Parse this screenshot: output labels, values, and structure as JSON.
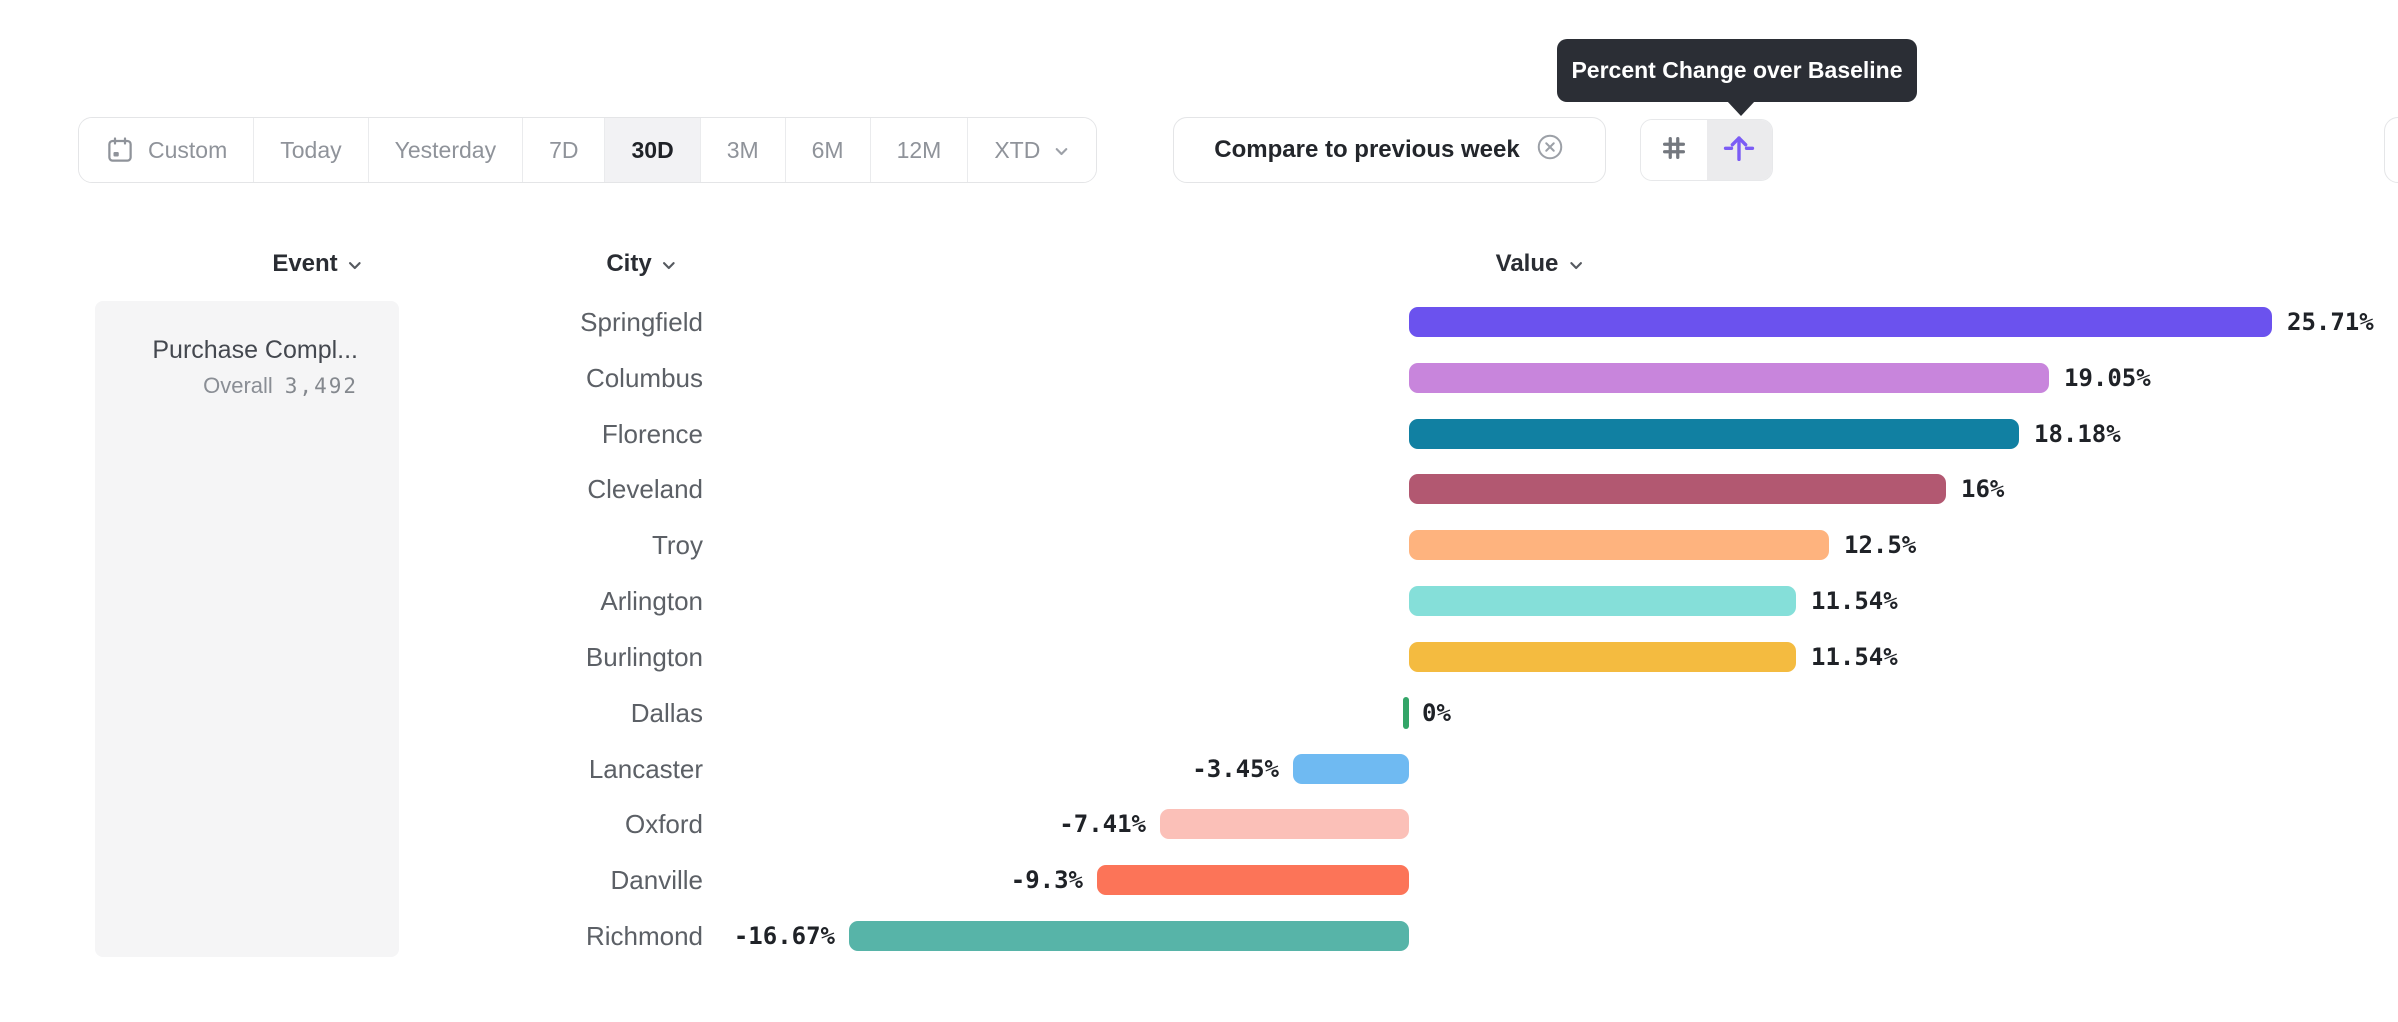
{
  "tooltip": {
    "text": "Percent Change over Baseline"
  },
  "toolbar": {
    "date_ranges": [
      {
        "label": "Custom",
        "icon": "calendar",
        "selected": false
      },
      {
        "label": "Today",
        "selected": false
      },
      {
        "label": "Yesterday",
        "selected": false
      },
      {
        "label": "7D",
        "selected": false
      },
      {
        "label": "30D",
        "selected": true
      },
      {
        "label": "3M",
        "selected": false
      },
      {
        "label": "6M",
        "selected": false
      },
      {
        "label": "12M",
        "selected": false
      },
      {
        "label": "XTD",
        "chevron": true,
        "selected": false
      }
    ],
    "compare_label": "Compare to previous week",
    "view_toggle": [
      {
        "name": "absolute-numbers-view",
        "icon": "hash-icon",
        "selected": false
      },
      {
        "name": "percent-change-view",
        "icon": "arrow-up-baseline-icon",
        "selected": true
      }
    ]
  },
  "colors": {
    "accent_purple": "#7B5CF5",
    "tooltip_bg": "#2B2E35",
    "selected_segment_bg": "#F2F2F4",
    "zero_tick_green": "#33A568"
  },
  "table": {
    "headers": [
      {
        "label": "Event"
      },
      {
        "label": "City"
      },
      {
        "label": "Value"
      }
    ],
    "event": {
      "name": "Purchase Compl...",
      "overall_label": "Overall",
      "overall_value": "3,492"
    },
    "rows": [
      {
        "city": "Springfield",
        "value": 25.71,
        "display": "25.71%",
        "color": "#6B52EE"
      },
      {
        "city": "Columbus",
        "value": 19.05,
        "display": "19.05%",
        "color": "#C885DC"
      },
      {
        "city": "Florence",
        "value": 18.18,
        "display": "18.18%",
        "color": "#1180A2"
      },
      {
        "city": "Cleveland",
        "value": 16,
        "display": "16%",
        "color": "#B25871"
      },
      {
        "city": "Troy",
        "value": 12.5,
        "display": "12.5%",
        "color": "#FEB37E"
      },
      {
        "city": "Arlington",
        "value": 11.54,
        "display": "11.54%",
        "color": "#85DFD9"
      },
      {
        "city": "Burlington",
        "value": 11.54,
        "display": "11.54%",
        "color": "#F4BB40"
      },
      {
        "city": "Dallas",
        "value": 0,
        "display": "0%",
        "color": "#33A568"
      },
      {
        "city": "Lancaster",
        "value": -3.45,
        "display": "-3.45%",
        "color": "#6FBAF2"
      },
      {
        "city": "Oxford",
        "value": -7.41,
        "display": "-7.41%",
        "color": "#FBC0B8"
      },
      {
        "city": "Danville",
        "value": -9.3,
        "display": "-9.3%",
        "color": "#FC7458"
      },
      {
        "city": "Richmond",
        "value": -16.67,
        "display": "-16.67%",
        "color": "#57B4A8"
      }
    ]
  },
  "chart_data": {
    "type": "bar",
    "orientation": "horizontal",
    "title": "Percent Change over Baseline",
    "series_event": "Purchase Compl... (Overall 3,492)",
    "categories": [
      "Springfield",
      "Columbus",
      "Florence",
      "Cleveland",
      "Troy",
      "Arlington",
      "Burlington",
      "Dallas",
      "Lancaster",
      "Oxford",
      "Danville",
      "Richmond"
    ],
    "values": [
      25.71,
      19.05,
      18.18,
      16,
      12.5,
      11.54,
      11.54,
      0,
      -3.45,
      -7.41,
      -9.3,
      -16.67
    ],
    "value_labels": [
      "25.71%",
      "19.05%",
      "18.18%",
      "16%",
      "12.5%",
      "11.54%",
      "11.54%",
      "0%",
      "-3.45%",
      "-7.41%",
      "-9.3%",
      "-16.67%"
    ],
    "xlabel": "Value",
    "ylabel": "City",
    "xlim": [
      -16.67,
      25.71
    ],
    "baseline": 0,
    "grid": false,
    "legend": false
  }
}
